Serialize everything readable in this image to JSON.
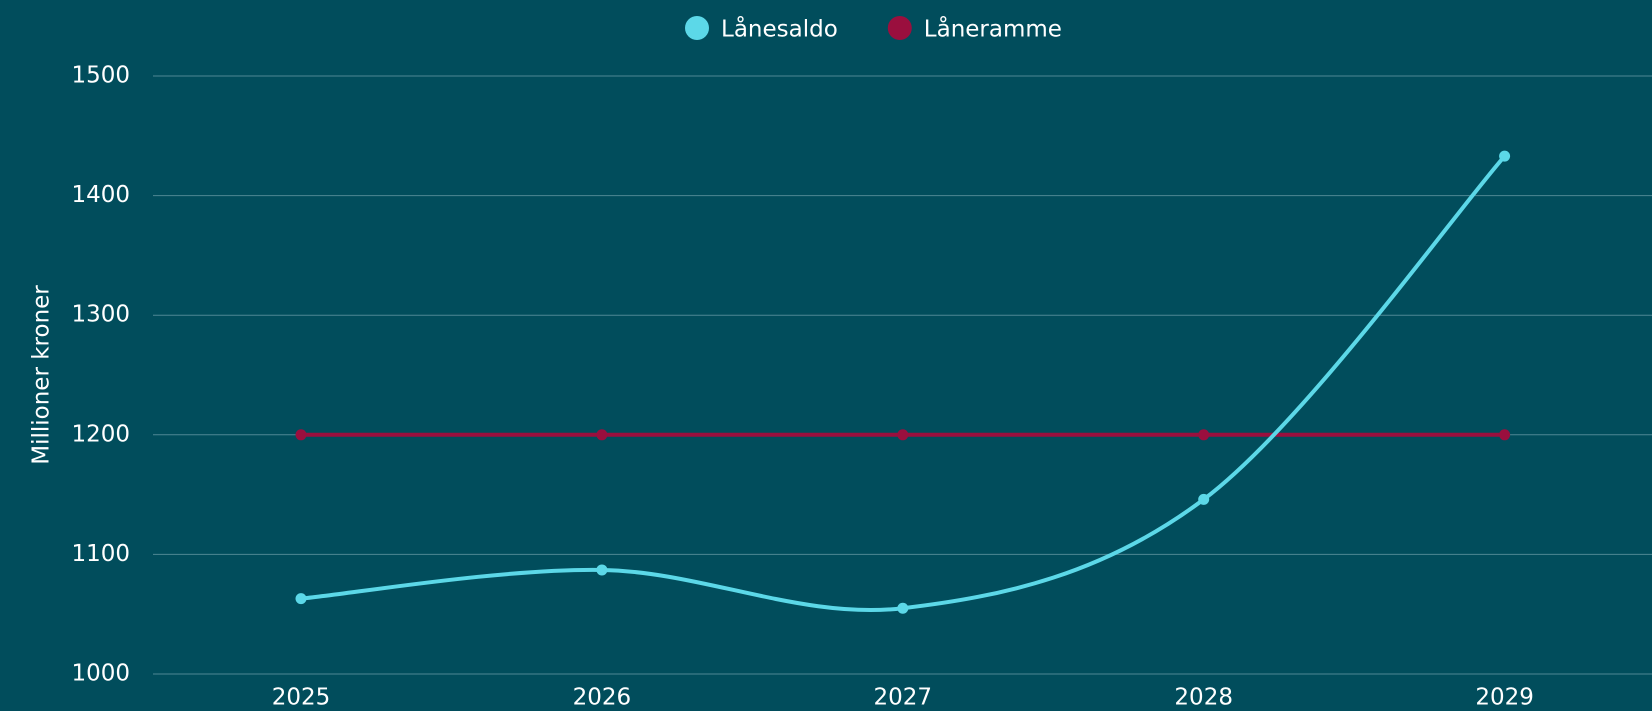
{
  "chart_data": {
    "type": "line",
    "y_label": "Millioner kroner",
    "categories": [
      "2025",
      "2026",
      "2027",
      "2028",
      "2029"
    ],
    "series": [
      {
        "name": "Lånesaldo",
        "color": "#5cd8e8",
        "values": [
          1063,
          1087,
          1055,
          1146,
          1433
        ]
      },
      {
        "name": "Låneramme",
        "color": "#9a0f3e",
        "values": [
          1200,
          1200,
          1200,
          1200,
          1200
        ]
      }
    ],
    "ylim": [
      1000,
      1500
    ],
    "yticks": [
      1000,
      1100,
      1200,
      1300,
      1400,
      1500
    ],
    "grid": true,
    "smooth": true,
    "legend": "top"
  }
}
